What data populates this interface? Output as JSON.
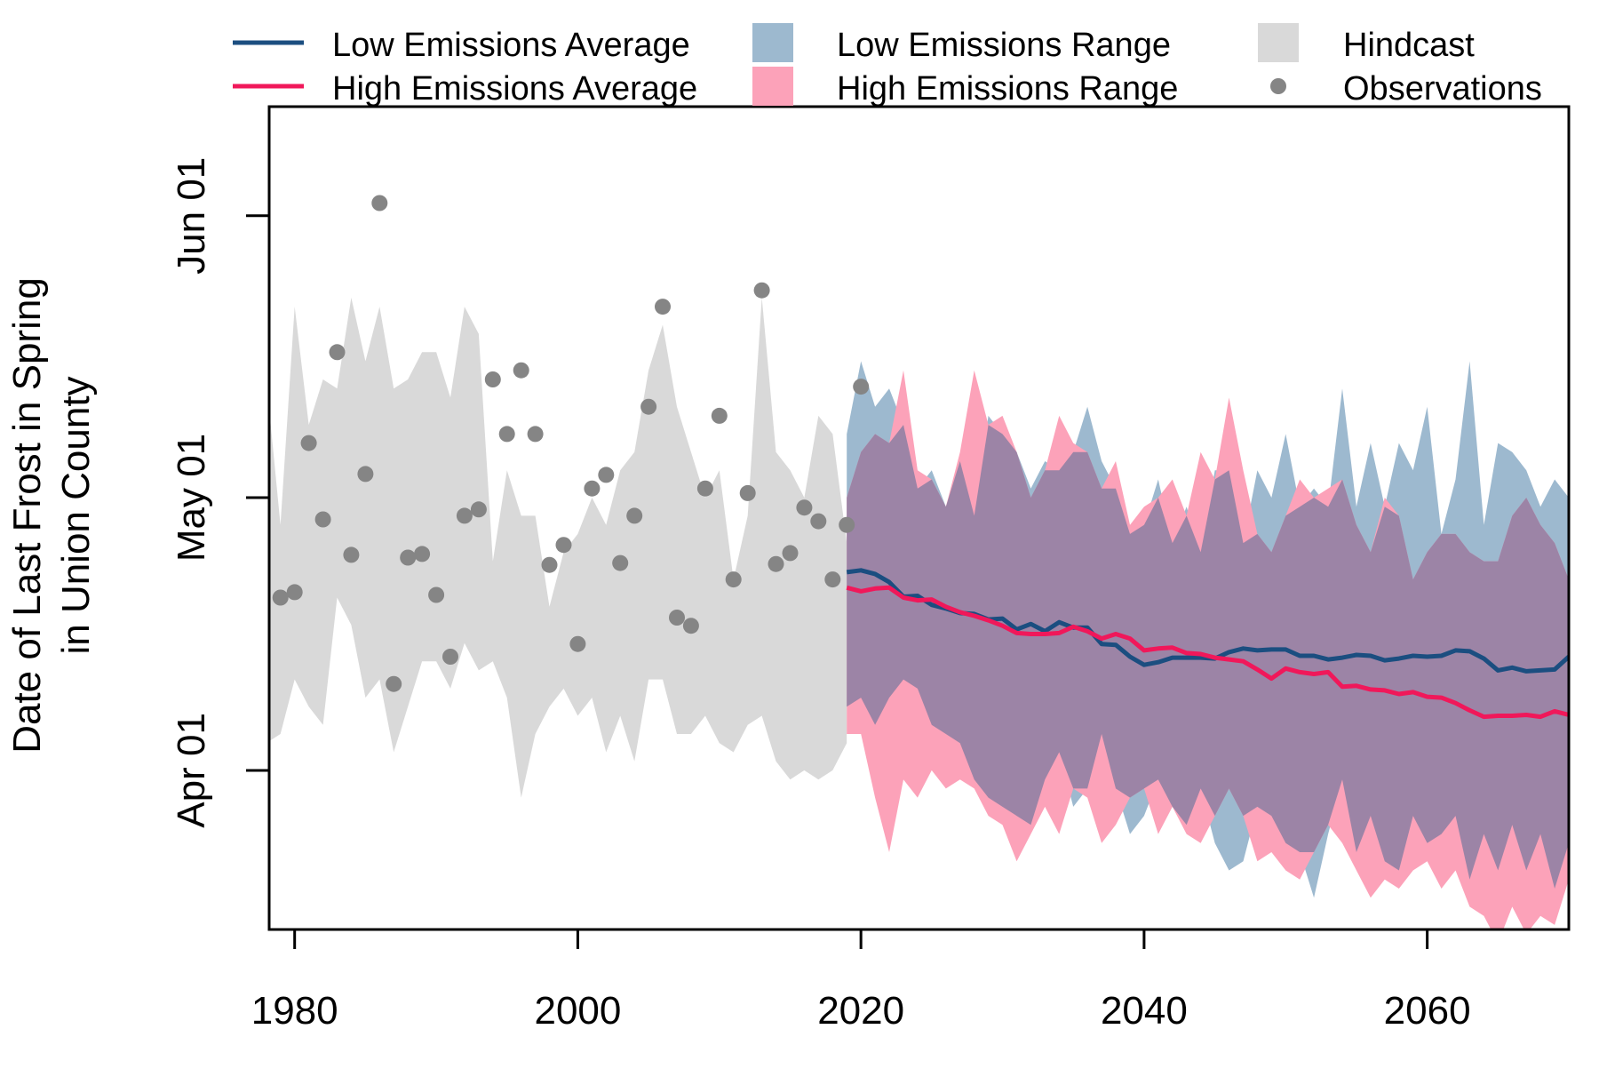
{
  "colors": {
    "low_line": "#1b4e80",
    "high_line": "#f0185a",
    "low_range": "#9db9cf",
    "high_range": "#fca2b9",
    "overlap": "#9c84a6",
    "hindcast": "#d9d9d9",
    "observations": "#858585"
  },
  "legend": {
    "low_avg": "Low Emissions Average",
    "high_avg": "High Emissions Average",
    "low_range": "Low Emissions Range",
    "high_range": "High Emissions Range",
    "hindcast": "Hindcast",
    "observations": "Observations"
  },
  "chart_data": {
    "type": "line",
    "title": "",
    "xlabel": "",
    "ylabel": [
      "Date of Last Frost in Spring",
      "in Union County"
    ],
    "xlim": [
      1978.2,
      2070
    ],
    "ylim": [
      73.5,
      164
    ],
    "x_ticks": [
      1980,
      2000,
      2020,
      2040,
      2060
    ],
    "y_ticks": [
      {
        "value": 91,
        "label": "Apr 01"
      },
      {
        "value": 121,
        "label": "May 01"
      },
      {
        "value": 152,
        "label": "Jun 01"
      }
    ],
    "grid": false,
    "legend_position": "top",
    "hindcast": {
      "x": [
        1978,
        1979,
        1980,
        1981,
        1982,
        1983,
        1984,
        1985,
        1986,
        1987,
        1988,
        1989,
        1990,
        1991,
        1992,
        1993,
        1994,
        1995,
        1996,
        1997,
        1998,
        1999,
        2000,
        2001,
        2002,
        2003,
        2004,
        2005,
        2006,
        2007,
        2008,
        2009,
        2010,
        2011,
        2012,
        2013,
        2014,
        2015,
        2016,
        2017,
        2018,
        2019
      ],
      "upper": [
        134,
        118,
        142,
        129,
        134,
        133,
        143,
        136,
        142,
        133,
        134,
        137,
        137,
        132,
        142,
        139,
        114,
        124,
        119,
        119,
        109,
        115,
        117,
        121,
        118,
        124,
        126,
        135,
        140,
        131,
        126,
        121,
        124,
        112,
        119,
        143,
        126,
        124,
        121,
        130,
        128,
        116
      ],
      "lower": [
        94,
        95,
        101,
        98,
        96,
        110,
        107,
        99,
        101,
        93,
        98,
        103,
        103,
        100,
        105,
        102,
        103,
        99,
        88,
        95,
        98,
        100,
        97,
        99,
        93,
        97,
        92,
        101,
        101,
        95,
        95,
        97,
        94,
        93,
        96,
        97,
        92,
        90,
        91,
        90,
        91,
        94
      ]
    },
    "low_range": {
      "x": [
        2019,
        2020,
        2021,
        2022,
        2023,
        2024,
        2025,
        2026,
        2027,
        2028,
        2029,
        2030,
        2031,
        2032,
        2033,
        2034,
        2035,
        2036,
        2037,
        2038,
        2039,
        2040,
        2041,
        2042,
        2043,
        2044,
        2045,
        2046,
        2047,
        2048,
        2049,
        2050,
        2051,
        2052,
        2053,
        2054,
        2055,
        2056,
        2057,
        2058,
        2059,
        2060,
        2061,
        2062,
        2063,
        2064,
        2065,
        2066,
        2067,
        2068,
        2069,
        2070
      ],
      "upper": [
        128,
        136,
        131,
        133,
        129,
        122,
        124,
        120,
        125,
        119,
        130,
        128,
        126,
        122,
        125,
        124,
        126,
        131,
        125,
        122,
        117,
        118,
        123,
        116,
        120,
        115,
        124,
        124,
        116,
        124,
        121,
        128,
        120,
        122,
        120,
        133,
        120,
        127,
        120,
        127,
        124,
        131,
        117,
        123,
        136,
        118,
        127,
        126,
        124,
        120,
        123,
        121
      ],
      "lower": [
        98,
        99,
        96,
        99,
        101,
        100,
        96,
        95,
        94,
        90,
        88,
        87,
        86,
        85,
        90,
        93,
        87,
        89,
        95,
        89,
        84,
        86,
        90,
        87,
        85,
        89,
        83,
        80,
        81,
        87,
        86,
        83,
        82,
        77,
        84,
        90,
        82,
        86,
        81,
        80,
        86,
        83,
        84,
        86,
        79,
        84,
        80,
        85,
        80,
        84,
        78,
        83
      ]
    },
    "high_range": {
      "x": [
        2019,
        2020,
        2021,
        2022,
        2023,
        2024,
        2025,
        2026,
        2027,
        2028,
        2029,
        2030,
        2031,
        2032,
        2033,
        2034,
        2035,
        2036,
        2037,
        2038,
        2039,
        2040,
        2041,
        2042,
        2043,
        2044,
        2045,
        2046,
        2047,
        2048,
        2049,
        2050,
        2051,
        2052,
        2053,
        2054,
        2055,
        2056,
        2057,
        2058,
        2059,
        2060,
        2061,
        2062,
        2063,
        2064,
        2065,
        2066,
        2067,
        2068,
        2069,
        2070
      ],
      "upper": [
        121,
        126,
        128,
        127,
        135,
        124,
        123,
        120,
        126,
        135,
        129,
        130,
        126,
        121,
        124,
        130,
        127,
        126,
        122,
        125,
        118,
        120,
        121,
        123,
        119,
        126,
        123,
        132,
        124,
        117,
        115,
        119,
        123,
        121,
        122,
        123,
        118,
        115,
        121,
        119,
        112,
        115,
        117,
        117,
        115,
        114,
        114,
        119,
        121,
        118,
        116,
        112
      ],
      "lower": [
        95,
        95,
        88,
        82,
        90,
        88,
        91,
        89,
        90,
        89,
        86,
        85,
        81,
        84,
        87,
        84,
        89,
        88,
        83,
        85,
        88,
        89,
        84,
        87,
        84,
        83,
        86,
        89,
        86,
        81,
        82,
        80,
        79,
        82,
        85,
        83,
        80,
        77,
        79,
        78,
        80,
        81,
        78,
        80,
        76,
        75,
        72,
        76,
        73,
        75,
        74,
        79
      ]
    },
    "series": [
      {
        "name": "Low Emissions Average",
        "x": [
          2019,
          2020,
          2021,
          2022,
          2023,
          2024,
          2025,
          2026,
          2027,
          2028,
          2029,
          2030,
          2031,
          2032,
          2033,
          2034,
          2035,
          2036,
          2037,
          2038,
          2039,
          2040,
          2041,
          2042,
          2043,
          2044,
          2045,
          2046,
          2047,
          2048,
          2049,
          2050,
          2051,
          2052,
          2053,
          2054,
          2055,
          2056,
          2057,
          2058,
          2059,
          2060,
          2061,
          2062,
          2063,
          2064,
          2065,
          2066,
          2067,
          2068,
          2069,
          2070
        ],
        "values": [
          112.8,
          113.0,
          112.6,
          111.7,
          110.1,
          110.2,
          109.2,
          108.8,
          108.3,
          108.2,
          107.6,
          107.7,
          106.5,
          107.1,
          106.3,
          107.3,
          106.7,
          106.7,
          104.9,
          104.8,
          103.5,
          102.6,
          102.9,
          103.4,
          103.4,
          103.4,
          103.3,
          104.0,
          104.4,
          104.2,
          104.3,
          104.3,
          103.6,
          103.6,
          103.2,
          103.4,
          103.7,
          103.6,
          103.1,
          103.3,
          103.6,
          103.5,
          103.6,
          104.2,
          104.1,
          103.3,
          102.0,
          102.3,
          101.9,
          102.0,
          102.1,
          103.5
        ]
      },
      {
        "name": "High Emissions Average",
        "x": [
          2019,
          2020,
          2021,
          2022,
          2023,
          2024,
          2025,
          2026,
          2027,
          2028,
          2029,
          2030,
          2031,
          2032,
          2033,
          2034,
          2035,
          2036,
          2037,
          2038,
          2039,
          2040,
          2041,
          2042,
          2043,
          2044,
          2045,
          2046,
          2047,
          2048,
          2049,
          2050,
          2051,
          2052,
          2053,
          2054,
          2055,
          2056,
          2057,
          2058,
          2059,
          2060,
          2061,
          2062,
          2063,
          2064,
          2065,
          2066,
          2067,
          2068,
          2069,
          2070
        ],
        "values": [
          111.1,
          110.7,
          111.0,
          111.1,
          110.0,
          109.7,
          109.8,
          109.0,
          108.4,
          108.0,
          107.5,
          106.9,
          106.1,
          106.0,
          106.0,
          106.1,
          106.8,
          106.3,
          105.5,
          106.0,
          105.5,
          104.2,
          104.4,
          104.5,
          103.9,
          103.8,
          103.4,
          103.2,
          103.0,
          102.1,
          101.1,
          102.2,
          101.8,
          101.6,
          101.8,
          100.2,
          100.3,
          99.9,
          99.8,
          99.4,
          99.6,
          99.1,
          99.0,
          98.4,
          97.6,
          96.9,
          97.0,
          97.0,
          97.1,
          96.9,
          97.5,
          97.1
        ]
      }
    ],
    "observations": {
      "x": [
        1979,
        1980,
        1981,
        1982,
        1983,
        1984,
        1985,
        1986,
        1987,
        1988,
        1989,
        1990,
        1991,
        1992,
        1993,
        1994,
        1995,
        1996,
        1997,
        1998,
        1999,
        2000,
        2001,
        2002,
        2003,
        2004,
        2005,
        2006,
        2007,
        2008,
        2009,
        2010,
        2011,
        2012,
        2013,
        2014,
        2015,
        2016,
        2017,
        2018,
        2019,
        2020
      ],
      "values": [
        110.0,
        110.6,
        127.0,
        118.6,
        137.0,
        114.7,
        123.6,
        153.4,
        100.5,
        114.4,
        114.8,
        110.3,
        103.5,
        119.0,
        119.7,
        134.0,
        128.0,
        135.0,
        128.0,
        113.6,
        115.8,
        104.9,
        122.0,
        123.5,
        113.8,
        119.0,
        131.0,
        142.0,
        107.8,
        106.9,
        122.0,
        130.0,
        112.0,
        121.5,
        143.8,
        113.7,
        114.9,
        119.9,
        118.4,
        112.0,
        118.0,
        133.2
      ]
    }
  }
}
